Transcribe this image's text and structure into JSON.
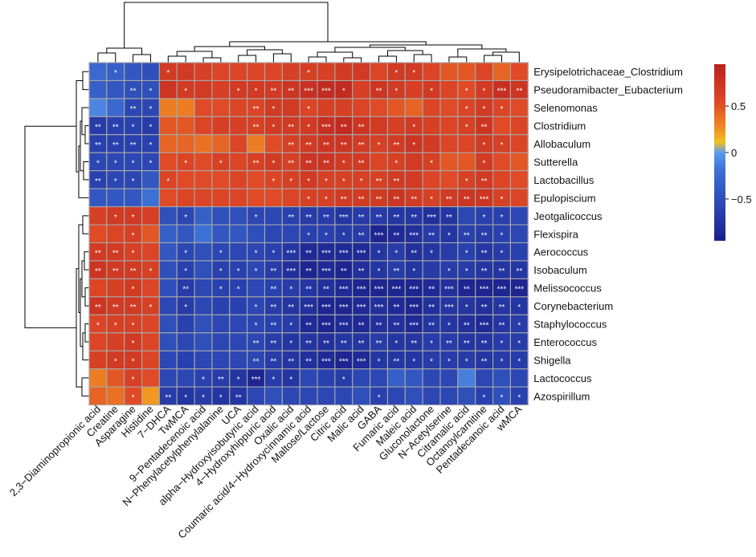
{
  "chart_data": {
    "type": "heatmap",
    "title": "",
    "rows": [
      "Erysipelotrichaceae_Clostridium",
      "Pseudoramibacter_Eubacterium",
      "Selenomonas",
      "Clostridium",
      "Allobaculum",
      "Sutterella",
      "Lactobacillus",
      "Epulopiscium",
      "Jeotgalicoccus",
      "Flexispira",
      "Aerococcus",
      "Isobaculum",
      "Melissococcus",
      "Corynebacterium",
      "Staphylococcus",
      "Enterococcus",
      "Shigella",
      "Lactococcus",
      "Azospirillum"
    ],
    "columns": [
      "2,3−Diaminopropionic acid",
      "Creatine",
      "Asparagine",
      "Histidine",
      "7−DHCA",
      "TwMCA",
      "9−Pentadecenoic acid",
      "N−Phenylacetylphenylalanine",
      "UCA",
      "alpha−Hydroxyisobutyric acid",
      "4−Hydroxyhippuric acid",
      "Oxalic acid",
      "Coumaric acid/4−Hydroxycinnamic acid",
      "Maltose/Lactose",
      "Citric acid",
      "Malic acid",
      "GABA",
      "Fumaric acid",
      "Maleic acid",
      "Gluconolactone",
      "N−Acetylserine",
      "Citramalic acid",
      "Octanoylcarnitine",
      "Pentadecanoic acid",
      "wMCA"
    ],
    "values": [
      [
        -0.4,
        -0.45,
        -0.5,
        -0.55,
        0.7,
        0.7,
        0.65,
        0.6,
        0.6,
        0.6,
        0.6,
        0.65,
        0.65,
        0.65,
        0.7,
        0.7,
        0.6,
        0.7,
        0.7,
        0.6,
        0.5,
        0.5,
        0.6,
        0.45,
        0.55
      ],
      [
        -0.45,
        -0.5,
        -0.55,
        -0.55,
        0.75,
        0.7,
        0.7,
        0.65,
        0.7,
        0.7,
        0.7,
        0.75,
        0.8,
        0.85,
        0.85,
        0.65,
        0.75,
        0.7,
        0.65,
        0.7,
        0.6,
        0.55,
        0.7,
        0.8,
        0.75
      ],
      [
        -0.2,
        -0.4,
        -0.6,
        -0.6,
        0.35,
        0.35,
        0.55,
        0.55,
        0.6,
        0.6,
        0.7,
        0.7,
        0.6,
        0.65,
        0.65,
        0.6,
        0.55,
        0.5,
        0.45,
        0.6,
        0.55,
        0.6,
        0.7,
        0.6,
        0.55
      ],
      [
        -0.7,
        -0.65,
        -0.65,
        -0.7,
        0.5,
        0.5,
        0.6,
        0.65,
        0.65,
        0.65,
        0.7,
        0.7,
        0.7,
        0.8,
        0.85,
        0.75,
        0.7,
        0.65,
        0.7,
        0.65,
        0.6,
        0.65,
        0.75,
        0.55,
        0.6
      ],
      [
        -0.65,
        -0.65,
        -0.65,
        -0.65,
        0.45,
        0.45,
        0.4,
        0.45,
        0.6,
        0.35,
        0.55,
        0.65,
        0.7,
        0.75,
        0.75,
        0.7,
        0.65,
        0.7,
        0.75,
        0.7,
        0.6,
        0.6,
        0.7,
        0.65,
        0.6
      ],
      [
        -0.6,
        -0.6,
        -0.6,
        -0.6,
        0.55,
        0.6,
        0.55,
        0.65,
        0.6,
        0.65,
        0.7,
        0.65,
        0.75,
        0.75,
        0.7,
        0.7,
        0.6,
        0.65,
        0.7,
        0.65,
        0.5,
        0.5,
        0.7,
        0.55,
        0.5
      ],
      [
        -0.65,
        -0.6,
        -0.6,
        -0.5,
        0.6,
        0.55,
        0.55,
        0.55,
        0.6,
        0.55,
        0.6,
        0.65,
        0.7,
        0.65,
        0.65,
        0.65,
        0.65,
        0.7,
        0.7,
        0.6,
        0.55,
        0.65,
        0.7,
        0.6,
        0.55
      ],
      [
        -0.5,
        -0.5,
        -0.5,
        -0.35,
        0.55,
        0.6,
        0.6,
        0.6,
        0.6,
        0.55,
        0.55,
        0.6,
        0.65,
        0.65,
        0.7,
        0.7,
        0.7,
        0.75,
        0.7,
        0.65,
        0.7,
        0.75,
        0.75,
        0.65,
        0.6
      ],
      [
        0.65,
        0.7,
        0.7,
        0.65,
        -0.55,
        -0.6,
        -0.45,
        -0.55,
        -0.55,
        -0.6,
        -0.6,
        -0.65,
        -0.7,
        -0.7,
        -0.75,
        -0.7,
        -0.7,
        -0.75,
        -0.75,
        -0.8,
        -0.75,
        -0.6,
        -0.65,
        -0.65,
        -0.6
      ],
      [
        0.55,
        0.6,
        0.65,
        0.5,
        -0.45,
        -0.5,
        -0.35,
        -0.5,
        -0.5,
        -0.55,
        -0.6,
        -0.6,
        -0.65,
        -0.65,
        -0.7,
        -0.7,
        -0.9,
        -0.85,
        -0.8,
        -0.7,
        -0.75,
        -0.65,
        -0.7,
        -0.65,
        -0.6
      ],
      [
        0.7,
        0.7,
        0.65,
        0.6,
        -0.5,
        -0.6,
        -0.55,
        -0.6,
        -0.6,
        -0.6,
        -0.65,
        -0.75,
        -0.85,
        -0.85,
        -0.85,
        -0.85,
        -0.75,
        -0.7,
        -0.8,
        -0.75,
        -0.7,
        -0.65,
        -0.75,
        -0.7,
        -0.65
      ],
      [
        0.75,
        0.7,
        0.7,
        0.65,
        -0.55,
        -0.65,
        -0.55,
        -0.65,
        -0.65,
        -0.6,
        -0.7,
        -0.8,
        -0.9,
        -0.85,
        -0.9,
        -0.8,
        -0.75,
        -0.7,
        -0.75,
        -0.7,
        -0.7,
        -0.7,
        -0.75,
        -0.75,
        -0.75
      ],
      [
        0.6,
        0.65,
        0.7,
        0.6,
        -0.55,
        -0.7,
        -0.6,
        -0.65,
        -0.65,
        -0.6,
        -0.65,
        -0.7,
        -0.75,
        -0.8,
        -0.85,
        -0.9,
        -0.9,
        -0.9,
        -0.9,
        -0.85,
        -0.8,
        -0.9,
        -0.9,
        -0.9,
        -0.9
      ],
      [
        0.75,
        0.7,
        0.7,
        0.65,
        -0.6,
        -0.7,
        -0.6,
        -0.65,
        -0.65,
        -0.6,
        -0.7,
        -0.75,
        -0.8,
        -0.9,
        -0.9,
        -0.85,
        -0.8,
        -0.85,
        -0.9,
        -0.8,
        -0.75,
        -0.75,
        -0.8,
        -0.75,
        -0.75
      ],
      [
        0.6,
        0.65,
        0.65,
        0.6,
        -0.55,
        -0.65,
        -0.55,
        -0.6,
        -0.6,
        -0.6,
        -0.65,
        -0.7,
        -0.85,
        -0.9,
        -0.85,
        -0.85,
        -0.8,
        -0.8,
        -0.85,
        -0.75,
        -0.75,
        -0.8,
        -0.85,
        -0.75,
        -0.7
      ],
      [
        0.6,
        0.65,
        0.7,
        0.6,
        -0.55,
        -0.6,
        -0.55,
        -0.6,
        -0.6,
        -0.6,
        -0.7,
        -0.75,
        -0.75,
        -0.8,
        -0.75,
        -0.75,
        -0.7,
        -0.75,
        -0.75,
        -0.7,
        -0.7,
        -0.75,
        -0.75,
        -0.7,
        -0.7
      ],
      [
        0.65,
        0.7,
        0.7,
        0.6,
        -0.6,
        -0.65,
        -0.6,
        -0.6,
        -0.6,
        -0.6,
        -0.7,
        -0.75,
        -0.8,
        -0.85,
        -0.9,
        -0.85,
        -0.75,
        -0.75,
        -0.75,
        -0.7,
        -0.7,
        -0.7,
        -0.75,
        -0.7,
        -0.7
      ],
      [
        0.35,
        0.5,
        0.65,
        0.55,
        -0.6,
        -0.6,
        -0.65,
        -0.7,
        -0.75,
        -0.9,
        -0.7,
        -0.75,
        -0.6,
        -0.65,
        -0.7,
        -0.6,
        -0.6,
        -0.45,
        -0.5,
        -0.6,
        -0.6,
        -0.25,
        -0.6,
        -0.55,
        -0.6
      ],
      [
        0.45,
        0.4,
        0.55,
        0.25,
        -0.7,
        -0.75,
        -0.7,
        -0.75,
        -0.75,
        -0.6,
        -0.55,
        -0.6,
        -0.6,
        -0.6,
        -0.6,
        -0.55,
        -0.65,
        -0.6,
        -0.55,
        -0.6,
        -0.6,
        -0.55,
        -0.65,
        -0.55,
        -0.65
      ]
    ],
    "significance": [
      [
        "",
        "*",
        "",
        "",
        "*",
        "",
        "",
        "",
        "",
        "",
        "",
        "",
        "*",
        "",
        "",
        "",
        "",
        "*",
        "*",
        "",
        "",
        "",
        "",
        "",
        ""
      ],
      [
        "",
        "",
        "**",
        "*",
        "",
        "*",
        "",
        "",
        "*",
        "*",
        "**",
        "**",
        "***",
        "***",
        "*",
        "",
        "**",
        "*",
        "",
        "*",
        "",
        "*",
        "*",
        "***",
        "**"
      ],
      [
        "",
        "",
        "**",
        "*",
        "",
        "",
        "",
        "",
        "",
        "**",
        "*",
        "",
        "*",
        "",
        "",
        "",
        "",
        "",
        "",
        "",
        "",
        "*",
        "*",
        "*",
        ""
      ],
      [
        "**",
        "**",
        "*",
        "*",
        "",
        "",
        "",
        "",
        "",
        "**",
        "*",
        "**",
        "*",
        "***",
        "**",
        "**",
        "",
        "",
        "*",
        "",
        "",
        "*",
        "**",
        "",
        ""
      ],
      [
        "**",
        "**",
        "**",
        "*",
        "",
        "",
        "",
        "",
        "",
        "",
        "",
        "**",
        "**",
        "**",
        "**",
        "**",
        "*",
        "**",
        "*",
        "",
        "",
        "",
        "*",
        "*",
        ""
      ],
      [
        "*",
        "*",
        "*",
        "*",
        "",
        "*",
        "",
        "*",
        "",
        "**",
        "*",
        "**",
        "**",
        "**",
        "*",
        "**",
        "",
        "*",
        "",
        "*",
        "",
        "",
        "*",
        "",
        ""
      ],
      [
        "**",
        "*",
        "*",
        "",
        "*",
        "",
        "",
        "",
        "",
        "",
        "*",
        "*",
        "*",
        "*",
        "*",
        "*",
        "**",
        "**",
        "",
        "",
        "",
        "*",
        "**",
        "",
        ""
      ],
      [
        "",
        "",
        "",
        "",
        "",
        "",
        "",
        "",
        "",
        "",
        "",
        "",
        "*",
        "*",
        "**",
        "**",
        "**",
        "**",
        "**",
        "*",
        "**",
        "**",
        "***",
        "*",
        ""
      ],
      [
        "",
        "*",
        "*",
        "",
        "",
        "*",
        "",
        "",
        "",
        "*",
        "",
        "**",
        "**",
        "**",
        "***",
        "**",
        "**",
        "**",
        "**",
        "***",
        "**",
        "",
        "*",
        "*",
        ""
      ],
      [
        "",
        "",
        "*",
        "",
        "",
        "",
        "",
        "",
        "",
        "",
        "",
        "",
        "*",
        "*",
        "*",
        "**",
        "***",
        "**",
        "***",
        "**",
        "*",
        "**",
        "**",
        "*",
        ""
      ],
      [
        "**",
        "**",
        "*",
        "",
        "",
        "*",
        "",
        "*",
        "",
        "*",
        "*",
        "***",
        "**",
        "***",
        "***",
        "***",
        "*",
        "*",
        "**",
        "*",
        "",
        "*",
        "**",
        "*",
        ""
      ],
      [
        "**",
        "**",
        "**",
        "*",
        "",
        "*",
        "",
        "*",
        "*",
        "*",
        "**",
        "***",
        "**",
        "***",
        "**",
        "**",
        "*",
        "**",
        "*",
        "",
        "*",
        "*",
        "**",
        "**",
        "**"
      ],
      [
        "",
        "",
        "*",
        "",
        "",
        "**",
        "",
        "*",
        "*",
        "",
        "**",
        "*",
        "**",
        "**",
        "***",
        "***",
        "***",
        "***",
        "***",
        "**",
        "***",
        "**",
        "***",
        "***",
        "***"
      ],
      [
        "**",
        "**",
        "**",
        "*",
        "",
        "*",
        "",
        "",
        "",
        "*",
        "**",
        "**",
        "***",
        "***",
        "***",
        "***",
        "***",
        "**",
        "***",
        "**",
        "***",
        "*",
        "**",
        "**",
        "*"
      ],
      [
        "*",
        "*",
        "*",
        "",
        "",
        "",
        "",
        "",
        "",
        "*",
        "**",
        "*",
        "**",
        "***",
        "***",
        "**",
        "**",
        "**",
        "***",
        "**",
        "*",
        "**",
        "***",
        "**",
        "*"
      ],
      [
        "",
        "",
        "*",
        "",
        "",
        "",
        "",
        "",
        "",
        "**",
        "**",
        "*",
        "**",
        "**",
        "**",
        "**",
        "**",
        "*",
        "**",
        "*",
        "**",
        "**",
        "**",
        "*",
        "*"
      ],
      [
        "",
        "*",
        "*",
        "",
        "",
        "",
        "",
        "",
        "",
        "**",
        "**",
        "**",
        "**",
        "***",
        "***",
        "***",
        "*",
        "**",
        "*",
        "*",
        "*",
        "*",
        "**",
        "*",
        "*"
      ],
      [
        "",
        "",
        "*",
        "",
        "",
        "",
        "*",
        "**",
        "*",
        "***",
        "*",
        "*",
        "",
        "",
        "*",
        "",
        "",
        "",
        "",
        "",
        "",
        "",
        "",
        "",
        ""
      ],
      [
        "",
        "",
        "*",
        "",
        "**",
        "*",
        "*",
        "*",
        "**",
        "",
        "",
        "",
        "",
        "",
        "",
        "",
        "*",
        "",
        "",
        "",
        "",
        "",
        "*",
        "*",
        "*"
      ]
    ],
    "colorbar": {
      "ticks": [
        0.5,
        0,
        -0.5
      ],
      "tick_labels": [
        "0.5",
        "0",
        "−0.5"
      ],
      "range": [
        -0.95,
        0.95
      ]
    },
    "colors": {
      "low": "#1a2a8c",
      "mid_low": "#3a64cc",
      "zero": "#5599ee",
      "mid_high": "#f2a020",
      "high": "#d02828",
      "grid": "#a8a8a8"
    }
  }
}
